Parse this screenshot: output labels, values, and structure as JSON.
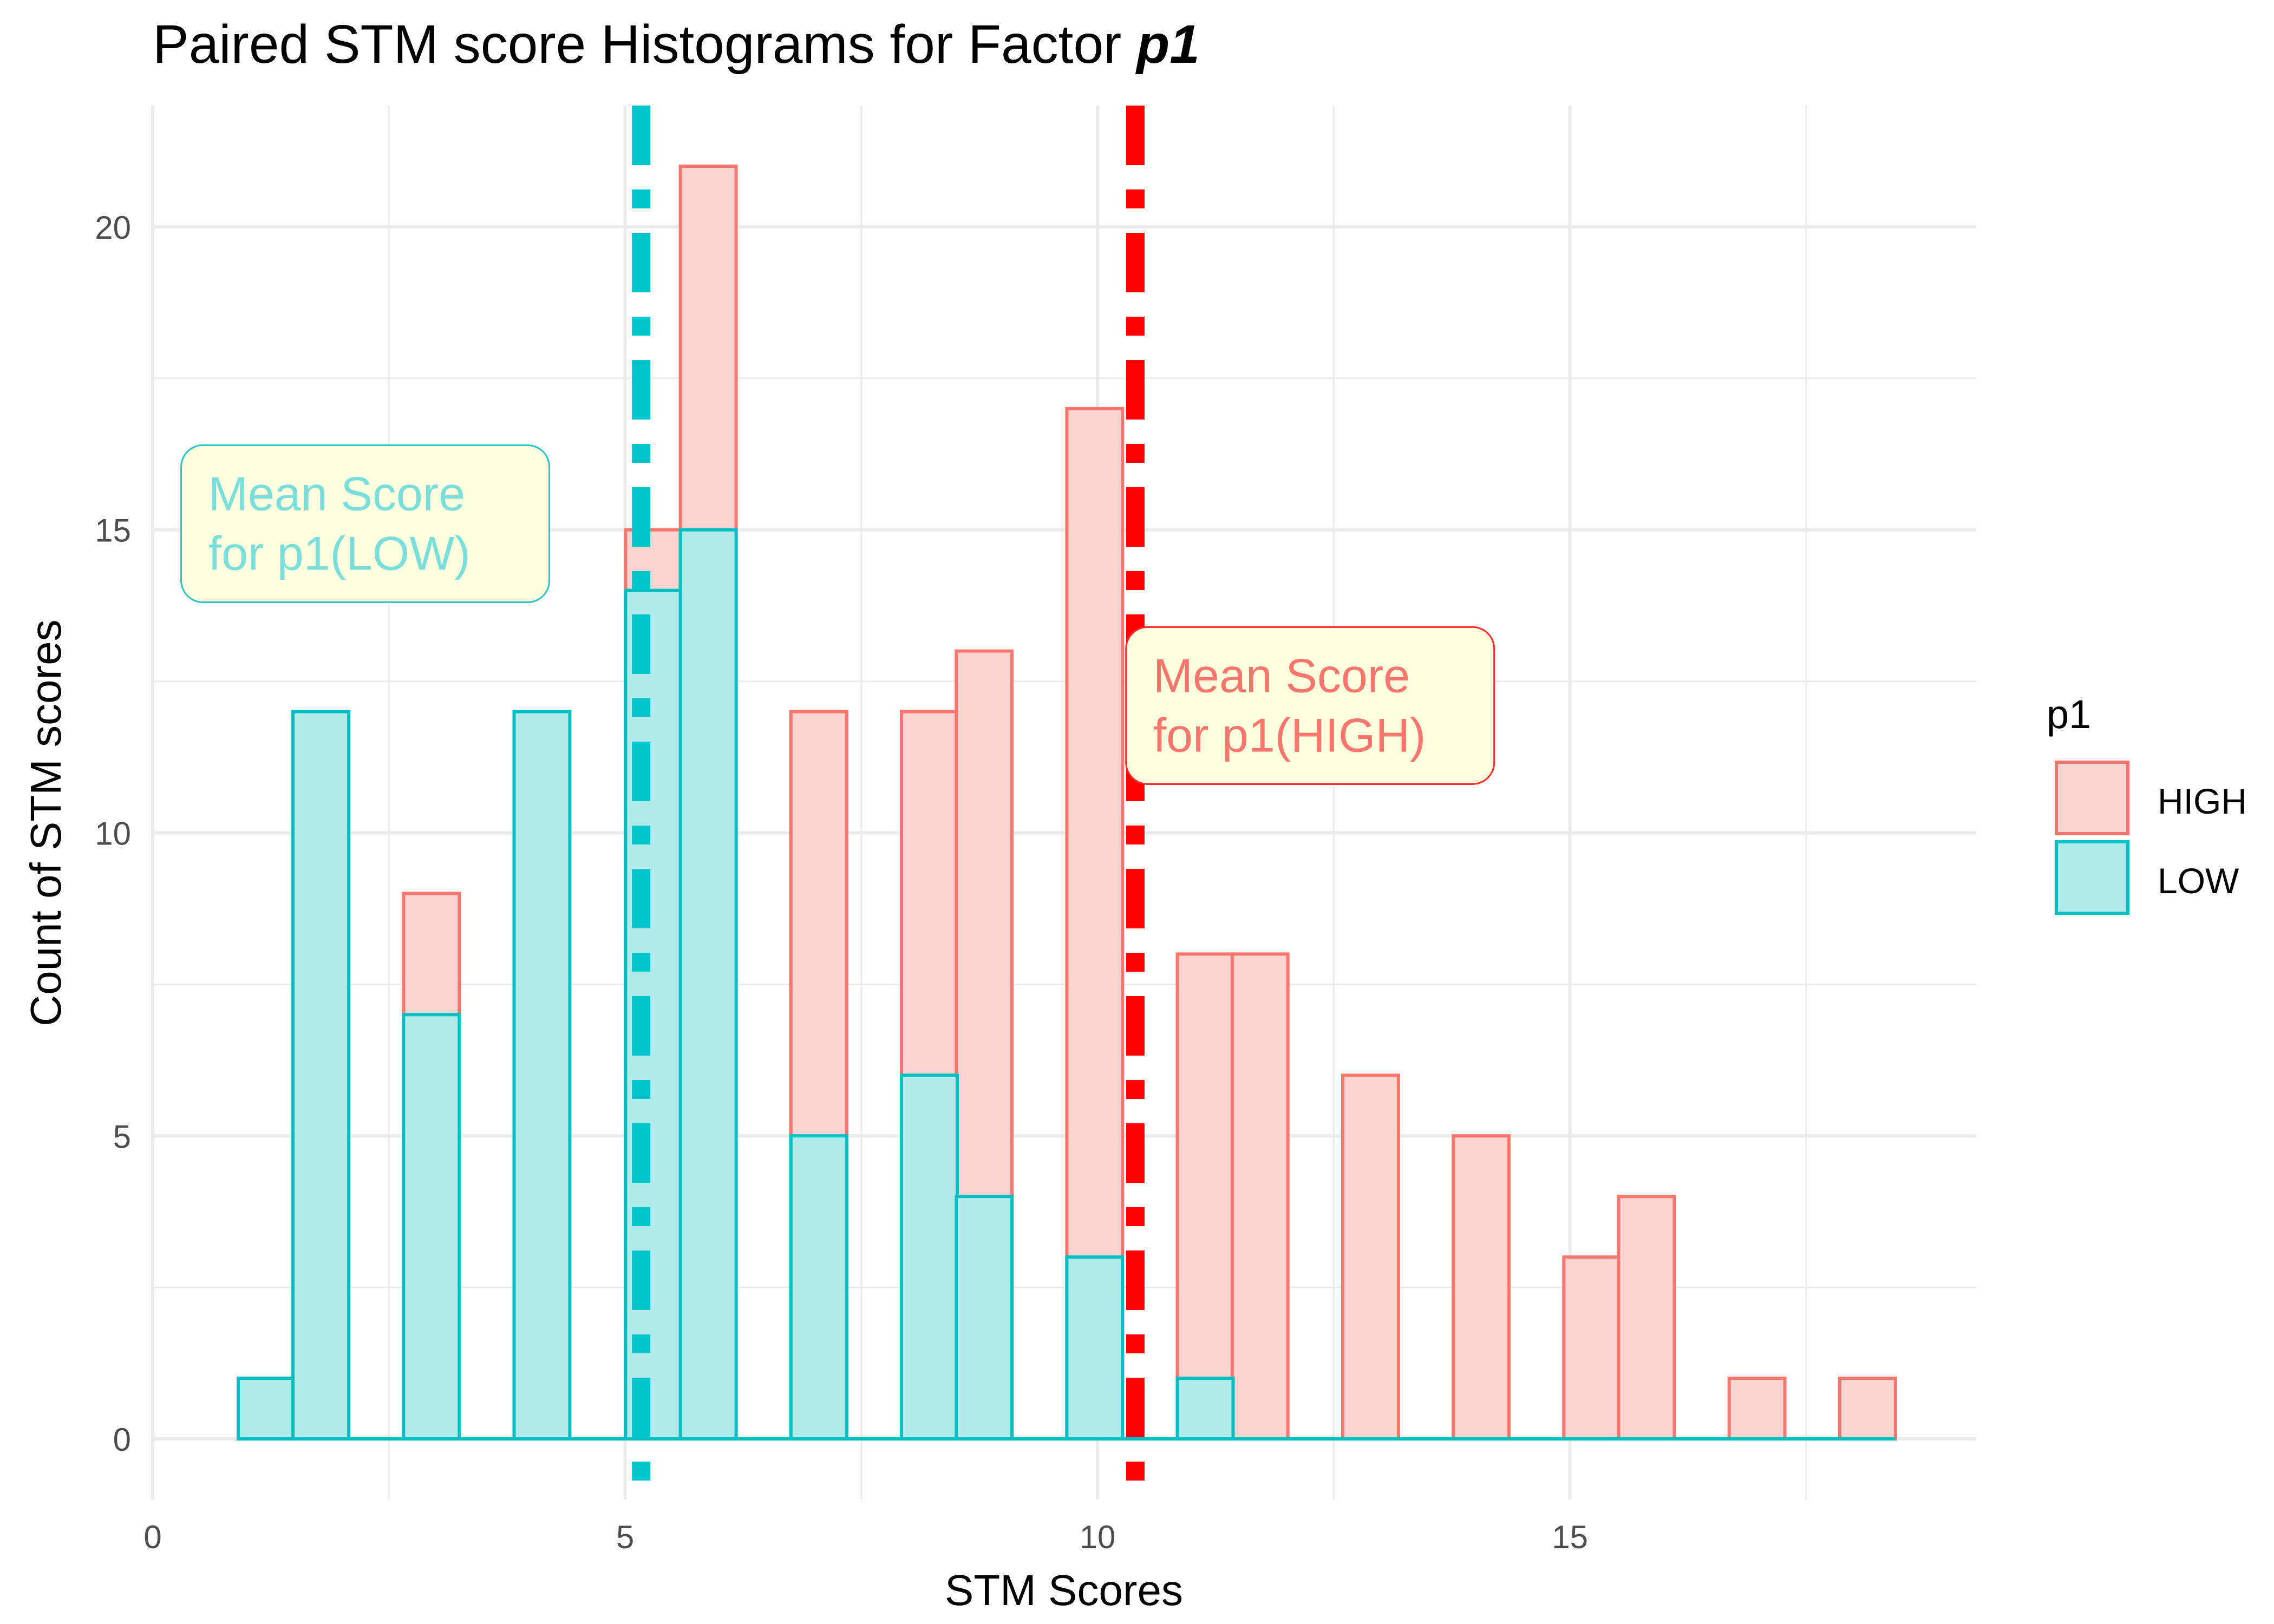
{
  "chart_data": {
    "type": "bar",
    "title": "Paired STM score Histograms for Factor ",
    "title_emphasis": "p1",
    "xlabel": "STM Scores",
    "ylabel": "Count of STM scores",
    "xlim": [
      0,
      19.3
    ],
    "ylim": [
      -1,
      22
    ],
    "x_ticks": [
      0,
      5,
      10,
      15
    ],
    "y_ticks": [
      0,
      5,
      10,
      15,
      20
    ],
    "grid": true,
    "bin_width": 0.59,
    "legend": {
      "title": "p1",
      "position": "right",
      "entries": [
        "HIGH",
        "LOW"
      ]
    },
    "series": [
      {
        "name": "HIGH",
        "color": "#F8766D",
        "fill": "#FBD3D0",
        "bars": [
          {
            "x": 2.95,
            "y": 9
          },
          {
            "x": 5.3,
            "y": 15
          },
          {
            "x": 5.88,
            "y": 21
          },
          {
            "x": 7.05,
            "y": 12
          },
          {
            "x": 8.22,
            "y": 12
          },
          {
            "x": 8.8,
            "y": 13
          },
          {
            "x": 9.97,
            "y": 17
          },
          {
            "x": 11.14,
            "y": 8
          },
          {
            "x": 11.72,
            "y": 8
          },
          {
            "x": 12.89,
            "y": 6
          },
          {
            "x": 14.06,
            "y": 5
          },
          {
            "x": 15.23,
            "y": 3
          },
          {
            "x": 15.81,
            "y": 4
          },
          {
            "x": 16.98,
            "y": 1
          },
          {
            "x": 18.15,
            "y": 1
          }
        ]
      },
      {
        "name": "LOW",
        "color": "#00BFC4",
        "fill": "#B2EBEC",
        "bars": [
          {
            "x": 1.2,
            "y": 1
          },
          {
            "x": 1.78,
            "y": 12
          },
          {
            "x": 2.95,
            "y": 7
          },
          {
            "x": 4.12,
            "y": 12
          },
          {
            "x": 5.3,
            "y": 14
          },
          {
            "x": 5.88,
            "y": 15
          },
          {
            "x": 7.05,
            "y": 5
          },
          {
            "x": 8.22,
            "y": 6
          },
          {
            "x": 8.8,
            "y": 4
          },
          {
            "x": 9.97,
            "y": 3
          },
          {
            "x": 11.14,
            "y": 1
          }
        ]
      }
    ],
    "mean_lines": [
      {
        "series": "LOW",
        "x": 5.17,
        "color": "#00C5CD"
      },
      {
        "series": "HIGH",
        "x": 10.4,
        "color": "#FF0000"
      }
    ],
    "annotations": [
      {
        "series": "LOW",
        "lines": [
          "Mean Score",
          "for p1(LOW)"
        ],
        "x": 2.25,
        "y": 15.1,
        "text_color": "#7ADFDB",
        "border_color": "#2BC5C8",
        "fill": "#FFFFE0"
      },
      {
        "series": "HIGH",
        "lines": [
          "Mean Score",
          "for p1(HIGH)"
        ],
        "x": 12.25,
        "y": 12.1,
        "text_color": "#F8766D",
        "border_color": "#FF2A2A",
        "fill": "#FFFFE0"
      }
    ]
  }
}
